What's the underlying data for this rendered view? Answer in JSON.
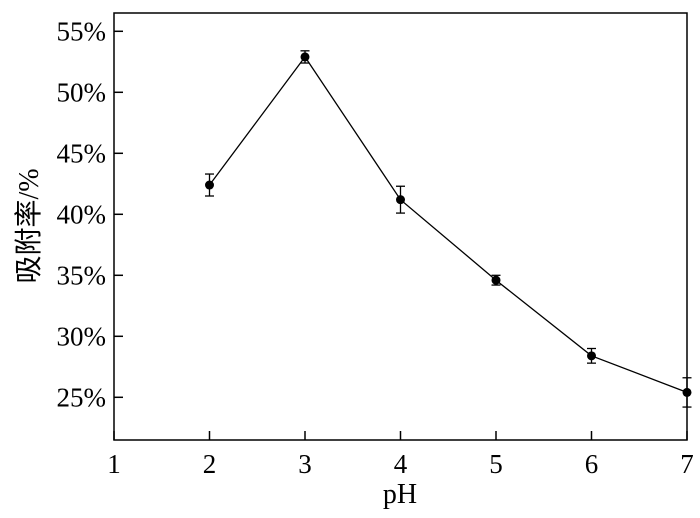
{
  "chart_data": {
    "type": "line",
    "title": "",
    "xlabel": "pH",
    "ylabel": "吸附率/%",
    "xlim": [
      1,
      7
    ],
    "ylim": [
      0.215,
      0.565
    ],
    "x_ticks": [
      1,
      2,
      3,
      4,
      5,
      6,
      7
    ],
    "x_tick_labels": [
      "1",
      "2",
      "3",
      "4",
      "5",
      "6",
      "7"
    ],
    "y_ticks": [
      0.25,
      0.3,
      0.35,
      0.4,
      0.45,
      0.5,
      0.55
    ],
    "y_tick_labels": [
      "25%",
      "30%",
      "35%",
      "40%",
      "45%",
      "50%",
      "55%"
    ],
    "grid": false,
    "series": [
      {
        "x": [
          2,
          3,
          4,
          5,
          6,
          7
        ],
        "y": [
          0.424,
          0.529,
          0.412,
          0.346,
          0.284,
          0.254
        ],
        "error": [
          0.009,
          0.005,
          0.011,
          0.004,
          0.006,
          0.012
        ],
        "color": "#000000",
        "marker": "circle"
      }
    ]
  }
}
